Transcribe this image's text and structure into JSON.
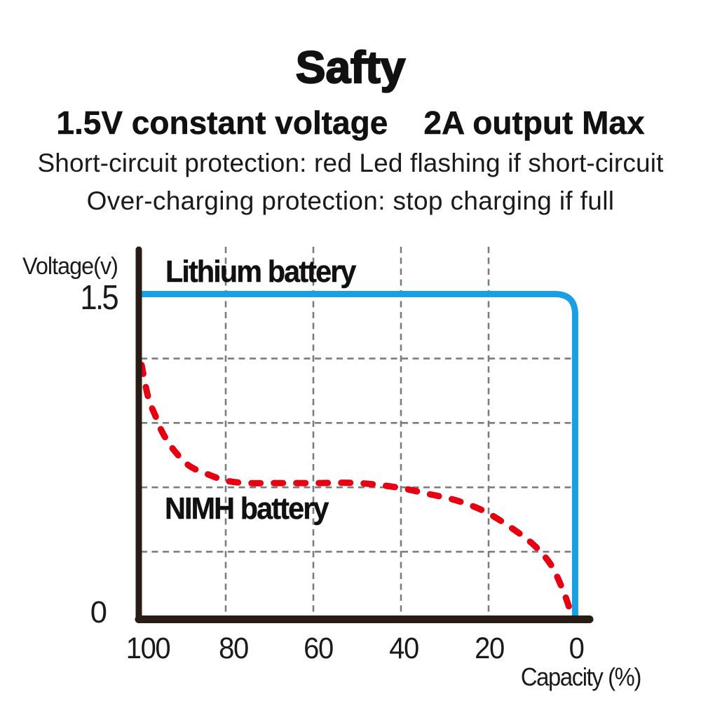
{
  "page": {
    "background": "#ffffff"
  },
  "header": {
    "title": "Safty",
    "subtitle": "1.5V constant voltage    2A output Max",
    "features": [
      "Short-circuit protection: red Led flashing if short-circuit",
      "Over-charging protection: stop charging if full"
    ]
  },
  "chart_data": {
    "type": "line",
    "xlabel": "Capacity (%)",
    "ylabel": "Voltage(v)",
    "x_axis": {
      "range": [
        100,
        0
      ],
      "reversed": true,
      "ticks": [
        100,
        80,
        60,
        40,
        20,
        0
      ]
    },
    "y_axis": {
      "range": [
        0,
        1.5
      ],
      "tick_labels": [
        "1.5",
        "0"
      ],
      "tick_values": [
        1.5,
        0
      ]
    },
    "grid": {
      "style": "dashed",
      "color": "#7c7c7c",
      "vertical_at": [
        80,
        60,
        40,
        20
      ],
      "horizontal_at": [
        1.2,
        0.9,
        0.6,
        0.3
      ]
    },
    "axis_color": "#281c14",
    "legend_position": "inline-annotations",
    "series": [
      {
        "name": "Lithium battery",
        "color": "#1aa0e2",
        "style": "solid",
        "shape": "constant-then-drop",
        "plateau_voltage": 1.5,
        "drop_capacity": 0.25,
        "points": [
          [
            100,
            1.5
          ],
          [
            0.25,
            1.5
          ],
          [
            0.25,
            0
          ]
        ]
      },
      {
        "name": "NIMH battery",
        "color": "#e60012",
        "style": "dashed",
        "shape": "smooth",
        "points": [
          [
            99.2,
            1.17
          ],
          [
            97.7,
            1.02
          ],
          [
            96.0,
            0.93
          ],
          [
            94.3,
            0.85
          ],
          [
            91.7,
            0.77
          ],
          [
            88.3,
            0.7
          ],
          [
            84.0,
            0.66
          ],
          [
            79.7,
            0.63
          ],
          [
            74.9,
            0.62
          ],
          [
            69.1,
            0.62
          ],
          [
            59.5,
            0.62
          ],
          [
            49.9,
            0.62
          ],
          [
            41.0,
            0.6
          ],
          [
            33.9,
            0.57
          ],
          [
            27.5,
            0.54
          ],
          [
            21.1,
            0.49
          ],
          [
            14.7,
            0.41
          ],
          [
            9.6,
            0.33
          ],
          [
            5.8,
            0.24
          ],
          [
            3.2,
            0.13
          ],
          [
            1.6,
            0.04
          ],
          [
            1.0,
            0.0
          ]
        ]
      }
    ]
  }
}
